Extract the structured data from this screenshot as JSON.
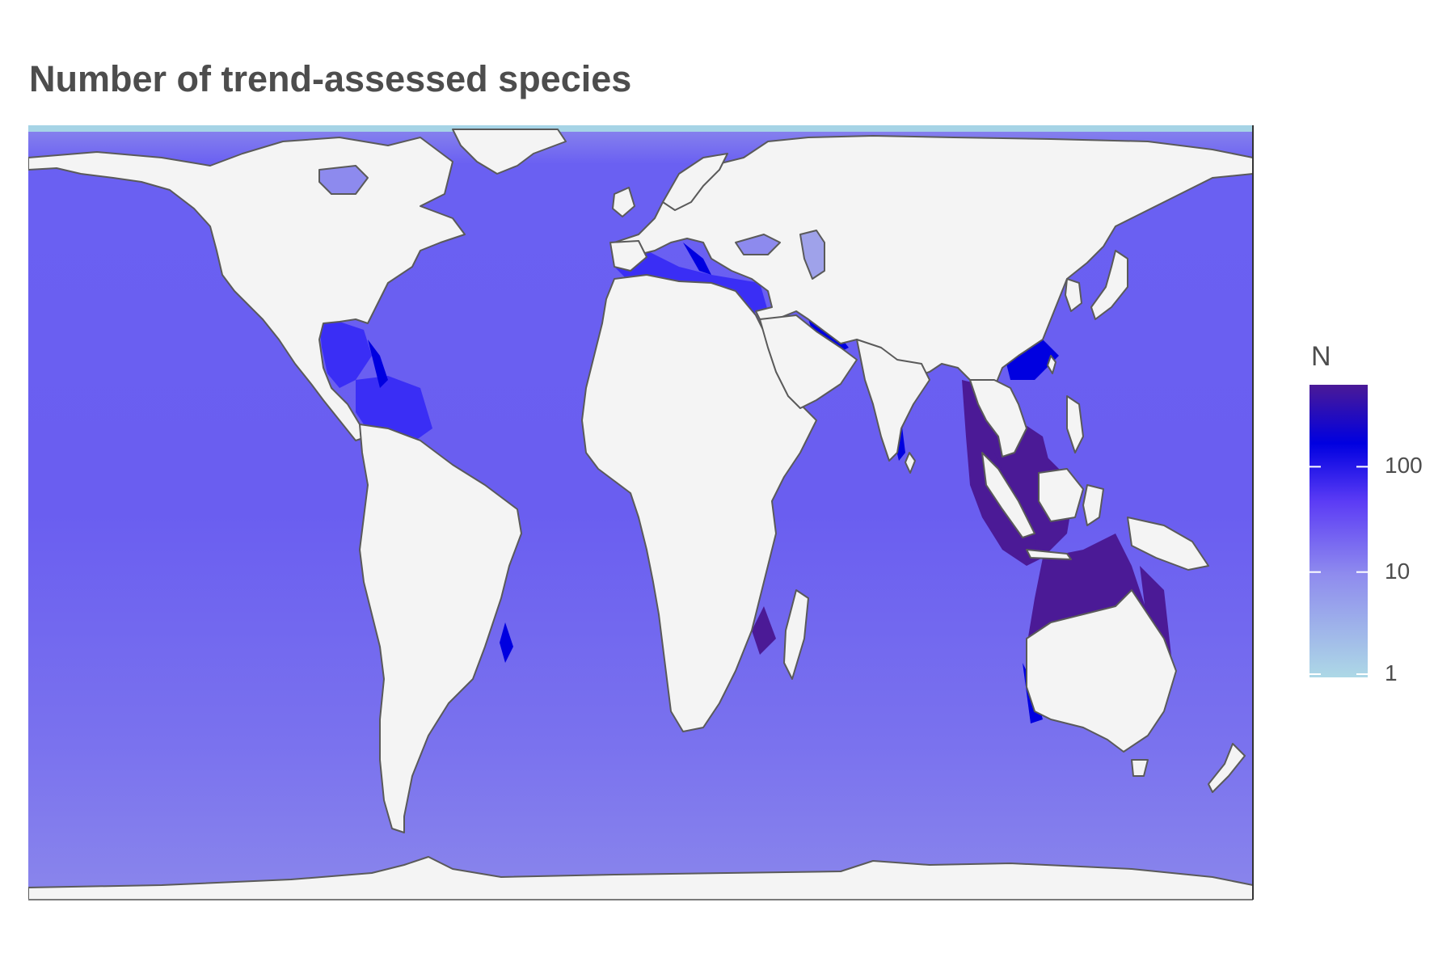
{
  "title": "Number of trend-assessed species",
  "legend": {
    "title": "N",
    "scale": "log10",
    "breaks": [
      {
        "value": 1,
        "label": "1"
      },
      {
        "value": 10,
        "label": "10"
      },
      {
        "value": 100,
        "label": "100"
      }
    ],
    "range": [
      1,
      600
    ],
    "colors": [
      "#add8e6",
      "#7b7bf0",
      "#5c3cf5",
      "#0000e0",
      "#4b1a96"
    ]
  },
  "map": {
    "projection": "Gall-Peters (equal-area cylindrical)",
    "ocean_color": "#6a5ef0",
    "land_color": "#f4f4f4",
    "coastline_color": "#555555",
    "hotspot_color": "#4b1a96",
    "high_color": "#0000e0",
    "low_color": "#9b96ee"
  }
}
